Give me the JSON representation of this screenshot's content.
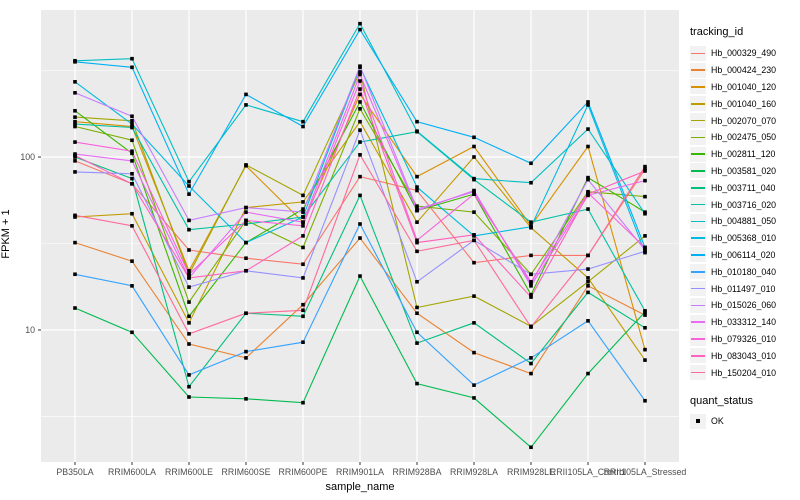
{
  "chart_data": {
    "type": "line",
    "title": "",
    "xlabel": "sample_name",
    "ylabel": "FPKM + 1",
    "y_scale": "log10",
    "y_tick_labels": [
      "100",
      "10"
    ],
    "y_tick_values": [
      100,
      10
    ],
    "y_minor_values": [
      316.23,
      31.62,
      3.16
    ],
    "ylim": [
      1.7,
      710
    ],
    "grid": true,
    "panel_bg": "#EBEBEB",
    "grid_color": "#FFFFFF",
    "point_shape": "square",
    "point_color": "#000000",
    "legend": {
      "title": "tracking_id",
      "position": "right"
    },
    "quant_legend": {
      "title": "quant_status",
      "items": [
        {
          "label": "OK"
        }
      ]
    },
    "categories": [
      "PB350LA",
      "RRIM600LA",
      "RRIM600LE",
      "RRIM600SE",
      "RRIM600PE",
      "RRIM901LA",
      "RRIM928BA",
      "RRIM928LA",
      "RRIM928LE",
      "RRII105LA_Control",
      "RRII105LA_Stressed"
    ],
    "series": [
      {
        "name": "Hb_000329_490",
        "color": "#F8766D",
        "values": [
          95,
          70,
          29,
          26,
          24,
          77,
          64,
          24.5,
          27,
          27,
          85
        ]
      },
      {
        "name": "Hb_000424_230",
        "color": "#EA8331",
        "values": [
          32,
          25,
          8.3,
          6.9,
          14,
          34,
          12.5,
          7.4,
          5.6,
          18,
          12.2
        ]
      },
      {
        "name": "Hb_001040_120",
        "color": "#D89000",
        "values": [
          160,
          150,
          22,
          89,
          42,
          230,
          77,
          115,
          40,
          115,
          7.7
        ]
      },
      {
        "name": "Hb_001040_160",
        "color": "#C09B00",
        "values": [
          45,
          47,
          11,
          51,
          55,
          160,
          42,
          100,
          39,
          20,
          6.7
        ]
      },
      {
        "name": "Hb_002070_070",
        "color": "#A3A500",
        "values": [
          170,
          162,
          21,
          90,
          60,
          310,
          13.5,
          15.7,
          10.5,
          19,
          35
        ]
      },
      {
        "name": "Hb_002475_050",
        "color": "#7CAE00",
        "values": [
          150,
          125,
          14.5,
          43,
          30,
          190,
          52,
          48,
          21,
          63,
          59
        ]
      },
      {
        "name": "Hb_002811_120",
        "color": "#39B600",
        "values": [
          185,
          105,
          12,
          32,
          50,
          208,
          49,
          61,
          16,
          76,
          48
        ]
      },
      {
        "name": "Hb_003581_020",
        "color": "#00BB4E",
        "values": [
          13.4,
          9.7,
          4.1,
          4.0,
          3.8,
          20.5,
          4.9,
          4.05,
          2.1,
          5.6,
          12.7
        ]
      },
      {
        "name": "Hb_003711_040",
        "color": "#00BF7D",
        "values": [
          100,
          75,
          4.7,
          12.5,
          12,
          60,
          8.4,
          11,
          6.4,
          16.5,
          10.3
        ]
      },
      {
        "name": "Hb_003716_020",
        "color": "#00C1A3",
        "values": [
          155,
          148,
          38,
          41,
          45,
          122,
          140,
          74,
          42,
          50,
          12.9
        ]
      },
      {
        "name": "Hb_004881_050",
        "color": "#00BFC4",
        "values": [
          360,
          370,
          72,
          200,
          160,
          590,
          141,
          75,
          71,
          145,
          47
        ]
      },
      {
        "name": "Hb_005368_010",
        "color": "#00BAE0",
        "values": [
          272,
          155,
          68,
          32,
          45,
          330,
          67,
          35,
          39.5,
          200,
          28
        ]
      },
      {
        "name": "Hb_006114_020",
        "color": "#00B0F6",
        "values": [
          355,
          330,
          61,
          230,
          150,
          545,
          160,
          130,
          92,
          208,
          30
        ]
      },
      {
        "name": "Hb_010180_040",
        "color": "#35A2FF",
        "values": [
          21,
          18,
          5.5,
          7.5,
          8.5,
          41,
          9.7,
          4.8,
          6.9,
          11.3,
          3.9
        ]
      },
      {
        "name": "Hb_011497_010",
        "color": "#9590FF",
        "values": [
          82,
          80,
          17.7,
          22,
          20,
          143,
          19,
          33,
          21,
          22.5,
          28.5
        ]
      },
      {
        "name": "Hb_015026_060",
        "color": "#C77CFF",
        "values": [
          235,
          172,
          43,
          51,
          48,
          335,
          50,
          63,
          18.5,
          74,
          29
        ]
      },
      {
        "name": "Hb_033312_140",
        "color": "#E76BF3",
        "values": [
          104,
          95,
          20,
          48,
          42,
          300,
          49,
          64,
          18,
          60,
          73
        ]
      },
      {
        "name": "Hb_079326_010",
        "color": "#FA62DB",
        "values": [
          122,
          108,
          21,
          43,
          40,
          275,
          33,
          61,
          19,
          62,
          30
        ]
      },
      {
        "name": "Hb_083043_010",
        "color": "#FF62BC",
        "values": [
          102,
          70,
          20,
          22,
          35,
          247,
          32,
          35.5,
          15.5,
          61,
          83
        ]
      },
      {
        "name": "Hb_150204_010",
        "color": "#FF6A98",
        "values": [
          46,
          40,
          9.5,
          12.5,
          13,
          103,
          28.5,
          33,
          10.4,
          27,
          88
        ]
      }
    ]
  }
}
